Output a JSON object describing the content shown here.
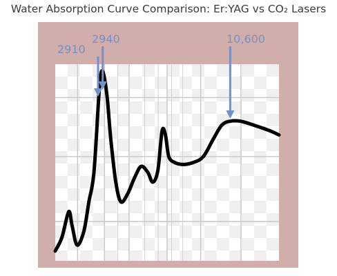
{
  "chart_data": {
    "type": "line",
    "title": "Water Absorption Curve Comparison: Er:YAG vs CO₂ Lasers",
    "xlabel": "",
    "ylabel": "",
    "grid": true,
    "annotations": [
      {
        "label": "2910",
        "x": 2910
      },
      {
        "label": "2940",
        "x": 2940
      },
      {
        "label": "10,600",
        "x": 10600
      }
    ],
    "series": [
      {
        "points": [
          [
            0.2,
            0.05
          ],
          [
            0.6,
            0.12
          ],
          [
            1.0,
            0.25
          ],
          [
            1.2,
            0.18
          ],
          [
            1.5,
            0.08
          ],
          [
            1.9,
            0.15
          ],
          [
            2.2,
            0.3
          ],
          [
            2.5,
            0.45
          ],
          [
            2.8,
            0.85
          ],
          [
            2.94,
            0.96
          ],
          [
            3.1,
            0.94
          ],
          [
            3.3,
            0.82
          ],
          [
            3.5,
            0.62
          ],
          [
            3.8,
            0.4
          ],
          [
            4.1,
            0.3
          ],
          [
            4.5,
            0.34
          ],
          [
            4.9,
            0.42
          ],
          [
            5.3,
            0.48
          ],
          [
            5.7,
            0.45
          ],
          [
            6.0,
            0.4
          ],
          [
            6.3,
            0.46
          ],
          [
            6.55,
            0.66
          ],
          [
            6.75,
            0.64
          ],
          [
            6.95,
            0.53
          ],
          [
            7.3,
            0.5
          ],
          [
            7.8,
            0.49
          ],
          [
            8.4,
            0.5
          ],
          [
            9.0,
            0.53
          ],
          [
            9.6,
            0.62
          ],
          [
            10.1,
            0.69
          ],
          [
            10.6,
            0.71
          ],
          [
            11.2,
            0.71
          ],
          [
            12.0,
            0.69
          ],
          [
            13.0,
            0.66
          ],
          [
            13.5,
            0.64
          ]
        ]
      }
    ]
  },
  "colors": {
    "frame": "#d1aeaa",
    "plot_bg": "#ffffff",
    "checker": "#e9e9e9",
    "grid": "#c8c8c8",
    "curve": "#000000",
    "annotation": "#7590c6"
  }
}
